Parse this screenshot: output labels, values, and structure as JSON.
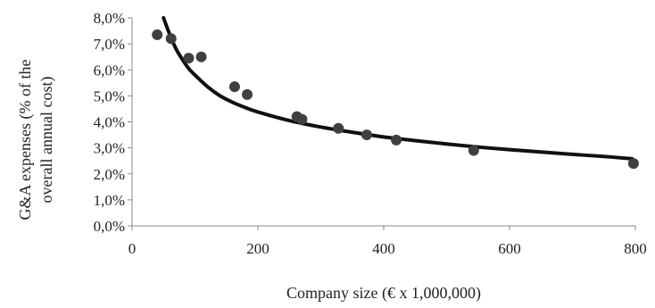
{
  "chart_data": {
    "type": "scatter",
    "xlabel": "Company size (€ x 1,000,000)",
    "ylabel_lines": [
      "G&A expenses (% of the",
      "overall annual cost)"
    ],
    "xlim": [
      0,
      800
    ],
    "ylim": [
      0,
      8
    ],
    "x_ticks": [
      "0",
      "200",
      "400",
      "600",
      "800"
    ],
    "y_ticks": [
      "0,0%",
      "1,0%",
      "2,0%",
      "3,0%",
      "4,0%",
      "5,0%",
      "6,0%",
      "7,0%",
      "8,0%"
    ],
    "grid": false,
    "legend": "none",
    "series": [
      {
        "kind": "points",
        "x": [
          40,
          62,
          90,
          110,
          163,
          183,
          262,
          270,
          328,
          373,
          420,
          543,
          797
        ],
        "y": [
          7.35,
          7.2,
          6.45,
          6.5,
          5.35,
          5.05,
          4.2,
          4.1,
          3.75,
          3.5,
          3.3,
          2.9,
          2.4
        ]
      },
      {
        "kind": "trendline",
        "x": [
          50,
          60,
          70,
          80,
          90,
          100,
          120,
          140,
          160,
          180,
          200,
          250,
          300,
          350,
          400,
          450,
          500,
          550,
          600,
          650,
          700,
          750,
          795
        ],
        "y": [
          8.0,
          7.35,
          6.8,
          6.4,
          6.05,
          5.8,
          5.35,
          5.0,
          4.75,
          4.55,
          4.38,
          4.05,
          3.8,
          3.6,
          3.42,
          3.28,
          3.15,
          3.03,
          2.93,
          2.84,
          2.75,
          2.67,
          2.58
        ]
      }
    ],
    "colors": {
      "points": "#404040",
      "trendline": "#111111",
      "axis": "#888888"
    }
  }
}
